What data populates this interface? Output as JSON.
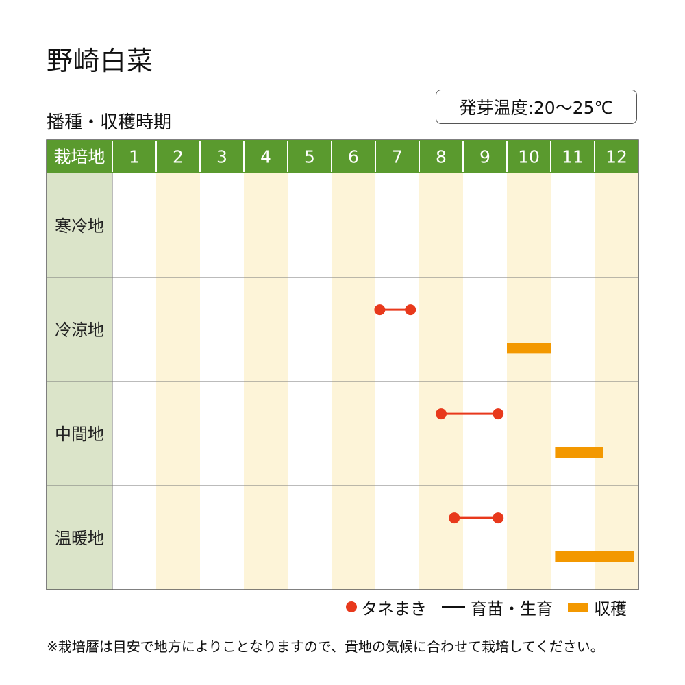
{
  "title": "野崎白菜",
  "subtitle": "播種・収穫時期",
  "temperature": "発芽温度:20～25℃",
  "legend": {
    "sowing": "タネまき",
    "growing": "育苗・生育",
    "harvest": "収穫"
  },
  "note": "※栽培暦は目安で地方によりことなりますので、貴地の気候に合わせて栽培してください。",
  "colors": {
    "header": "#5a9a2e",
    "row_label_bg": "#dbe4c9",
    "stripe": "#fdf4d8",
    "sowing": "#e8391c",
    "harvest": "#f39800"
  },
  "chart_data": {
    "type": "gantt",
    "header_label": "栽培地",
    "months": [
      "1",
      "2",
      "3",
      "4",
      "5",
      "6",
      "7",
      "8",
      "9",
      "10",
      "11",
      "12"
    ],
    "regions": [
      {
        "name": "寒冷地",
        "sowing": null,
        "harvest": null
      },
      {
        "name": "冷涼地",
        "sowing": [
          7.1,
          7.8
        ],
        "harvest": [
          10.0,
          11.0
        ]
      },
      {
        "name": "中間地",
        "sowing": [
          8.5,
          9.8
        ],
        "harvest": [
          11.1,
          12.2
        ]
      },
      {
        "name": "温暖地",
        "sowing": [
          8.8,
          9.8
        ],
        "harvest": [
          11.1,
          12.9
        ]
      }
    ]
  }
}
